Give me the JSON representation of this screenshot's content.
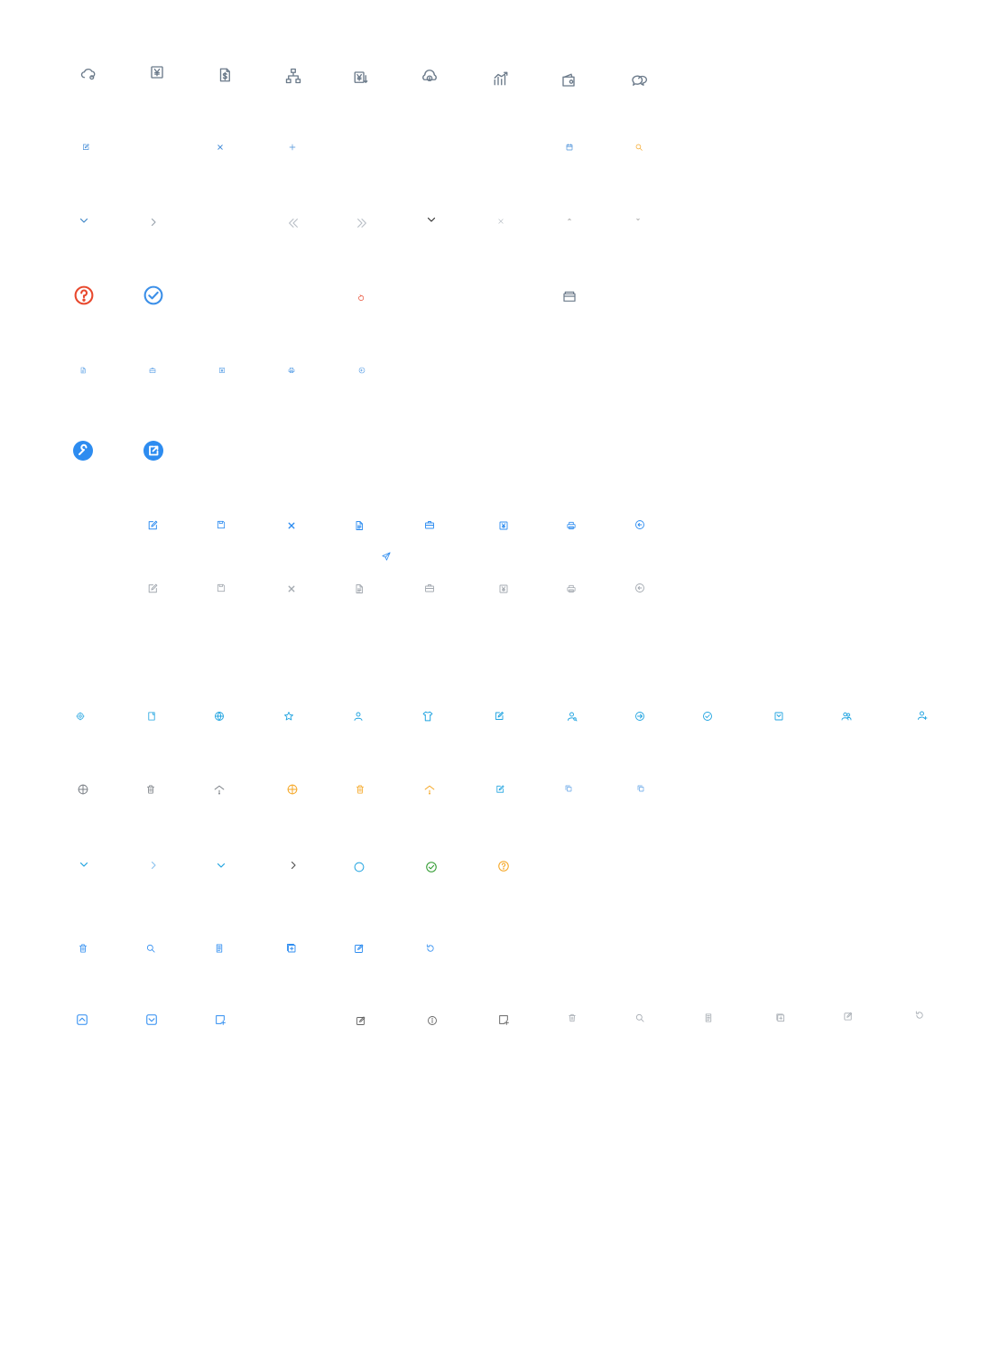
{
  "sheet": {
    "title": "",
    "icons": [
      {
        "name": "cloud-gear-icon",
        "color": "#6b7a8a"
      },
      {
        "name": "yuan-box-icon",
        "color": "#6b7a8a"
      },
      {
        "name": "dollar-doc-icon",
        "color": "#6b7a8a"
      },
      {
        "name": "org-tree-icon",
        "color": "#6b7a8a"
      },
      {
        "name": "yuan-down-icon",
        "color": "#6b7a8a"
      },
      {
        "name": "cloud-coin-icon",
        "color": "#6b7a8a"
      },
      {
        "name": "growth-chart-icon",
        "color": "#6b7a8a"
      },
      {
        "name": "wallet-icon",
        "color": "#6b7a8a"
      },
      {
        "name": "speech-bubbles-icon",
        "color": "#6b7a8a"
      },
      {
        "name": "edit-small-icon",
        "color": "#4a90d9"
      },
      {
        "name": "close-small-icon",
        "color": "#4a90d9"
      },
      {
        "name": "plus-small-icon",
        "color": "#4a90d9"
      },
      {
        "name": "calendar-small-icon",
        "color": "#4a90d9"
      },
      {
        "name": "search-small-icon",
        "color": "#f5a623"
      },
      {
        "name": "chevron-down-icon",
        "color": "#3f86c7"
      },
      {
        "name": "chevron-right-icon",
        "color": "#9aa3ad"
      },
      {
        "name": "double-chevron-left-icon",
        "color": "#b8bec6"
      },
      {
        "name": "double-chevron-right-icon",
        "color": "#b8bec6"
      },
      {
        "name": "chevron-down-dark-icon",
        "color": "#333333"
      },
      {
        "name": "close-thin-icon",
        "color": "#b8bec6"
      },
      {
        "name": "caret-up-icon",
        "color": "#666666"
      },
      {
        "name": "caret-down-icon",
        "color": "#666666"
      },
      {
        "name": "question-circle-icon",
        "color": "#e8492e"
      },
      {
        "name": "check-circle-icon",
        "color": "#3b8fe8"
      },
      {
        "name": "refresh-small-icon",
        "color": "#e8492e"
      },
      {
        "name": "folder-box-icon",
        "color": "#6b7a8a"
      },
      {
        "name": "document-mini-icon",
        "color": "#5ba0e6"
      },
      {
        "name": "briefcase-mini-icon",
        "color": "#5ba0e6"
      },
      {
        "name": "yuan-mini-icon",
        "color": "#5ba0e6"
      },
      {
        "name": "printer-mini-icon",
        "color": "#5ba0e6"
      },
      {
        "name": "undo-mini-icon",
        "color": "#5ba0e6"
      },
      {
        "name": "wrench-button-icon",
        "color": "#2d8cf0"
      },
      {
        "name": "share-button-icon",
        "color": "#2d8cf0"
      },
      {
        "name": "edit-blue-icon",
        "color": "#2d8cf0"
      },
      {
        "name": "save-blue-icon",
        "color": "#2d8cf0"
      },
      {
        "name": "close-blue-icon",
        "color": "#2d8cf0"
      },
      {
        "name": "document-blue-icon",
        "color": "#2d8cf0"
      },
      {
        "name": "briefcase-blue-icon",
        "color": "#2d8cf0"
      },
      {
        "name": "yuan-blue-icon",
        "color": "#2d8cf0"
      },
      {
        "name": "printer-blue-icon",
        "color": "#2d8cf0"
      },
      {
        "name": "undo-blue-icon",
        "color": "#2d8cf0"
      },
      {
        "name": "send-blue-icon",
        "color": "#2d8cf0"
      },
      {
        "name": "edit-grey-icon",
        "color": "#a3a9b0"
      },
      {
        "name": "save-grey-icon",
        "color": "#a3a9b0"
      },
      {
        "name": "close-grey-icon",
        "color": "#a3a9b0"
      },
      {
        "name": "document-grey-icon",
        "color": "#a3a9b0"
      },
      {
        "name": "briefcase-grey-icon",
        "color": "#a3a9b0"
      },
      {
        "name": "yuan-grey-icon",
        "color": "#a3a9b0"
      },
      {
        "name": "printer-grey-icon",
        "color": "#a3a9b0"
      },
      {
        "name": "undo-grey-icon",
        "color": "#a3a9b0"
      },
      {
        "name": "gear-cyan-icon",
        "color": "#1fa3e0"
      },
      {
        "name": "note-cyan-icon",
        "color": "#1fa3e0"
      },
      {
        "name": "globe-cyan-icon",
        "color": "#1fa3e0"
      },
      {
        "name": "star-cyan-icon",
        "color": "#1fa3e0"
      },
      {
        "name": "user-cyan-icon",
        "color": "#1fa3e0"
      },
      {
        "name": "shirt-cyan-icon",
        "color": "#1fa3e0"
      },
      {
        "name": "edit-cyan-icon",
        "color": "#1fa3e0"
      },
      {
        "name": "user-search-cyan-icon",
        "color": "#1fa3e0"
      },
      {
        "name": "arrow-circle-cyan-icon",
        "color": "#1fa3e0"
      },
      {
        "name": "check-circle-cyan-icon",
        "color": "#1fa3e0"
      },
      {
        "name": "tray-cyan-icon",
        "color": "#1fa3e0"
      },
      {
        "name": "users-cyan-icon",
        "color": "#1fa3e0"
      },
      {
        "name": "user-add-cyan-icon",
        "color": "#1fa3e0"
      },
      {
        "name": "crosshair-grey-icon",
        "color": "#7a7f85"
      },
      {
        "name": "trash-grey-icon",
        "color": "#7a7f85"
      },
      {
        "name": "signal-grey-icon",
        "color": "#7a7f85"
      },
      {
        "name": "crosshair-orange-icon",
        "color": "#f5a623"
      },
      {
        "name": "trash-orange-icon",
        "color": "#f5a623"
      },
      {
        "name": "signal-orange-icon",
        "color": "#f5a623"
      },
      {
        "name": "edit-cyan-small-icon",
        "color": "#1fa3e0"
      },
      {
        "name": "copy-light-icon",
        "color": "#5ba0e6"
      },
      {
        "name": "copy-light-2-icon",
        "color": "#5ba0e6"
      },
      {
        "name": "chevron-down-cyan-icon",
        "color": "#1fa3e0"
      },
      {
        "name": "chevron-right-light-icon",
        "color": "#8fc4ee"
      },
      {
        "name": "chevron-down-cyan-2-icon",
        "color": "#1fa3e0"
      },
      {
        "name": "chevron-right-grey-icon",
        "color": "#555555"
      },
      {
        "name": "circle-outline-cyan-icon",
        "color": "#1fa3e0"
      },
      {
        "name": "check-circle-green-icon",
        "color": "#2e9a2e"
      },
      {
        "name": "question-circle-orange-icon",
        "color": "#f5a623"
      },
      {
        "name": "trash-blue-icon",
        "color": "#2d8cf0"
      },
      {
        "name": "search-blue-icon",
        "color": "#2d8cf0"
      },
      {
        "name": "list-doc-blue-icon",
        "color": "#2d8cf0"
      },
      {
        "name": "add-box-blue-icon",
        "color": "#2d8cf0"
      },
      {
        "name": "edit-box-blue-icon",
        "color": "#2d8cf0"
      },
      {
        "name": "refresh-blue-icon",
        "color": "#2d8cf0"
      },
      {
        "name": "collapse-up-box-icon",
        "color": "#2d8cf0"
      },
      {
        "name": "expand-down-box-icon",
        "color": "#2d8cf0"
      },
      {
        "name": "add-note-blue-icon",
        "color": "#2d8cf0"
      },
      {
        "name": "edit-box-dark-icon",
        "color": "#666666"
      },
      {
        "name": "info-circle-dark-icon",
        "color": "#666666"
      },
      {
        "name": "add-note-dark-icon",
        "color": "#666666"
      },
      {
        "name": "trash-light-icon",
        "color": "#a3a9b0"
      },
      {
        "name": "search-light-icon",
        "color": "#a3a9b0"
      },
      {
        "name": "list-doc-light-icon",
        "color": "#a3a9b0"
      },
      {
        "name": "add-box-light-icon",
        "color": "#a3a9b0"
      },
      {
        "name": "edit-box-light-icon",
        "color": "#a3a9b0"
      },
      {
        "name": "refresh-light-icon",
        "color": "#a3a9b0"
      }
    ]
  }
}
